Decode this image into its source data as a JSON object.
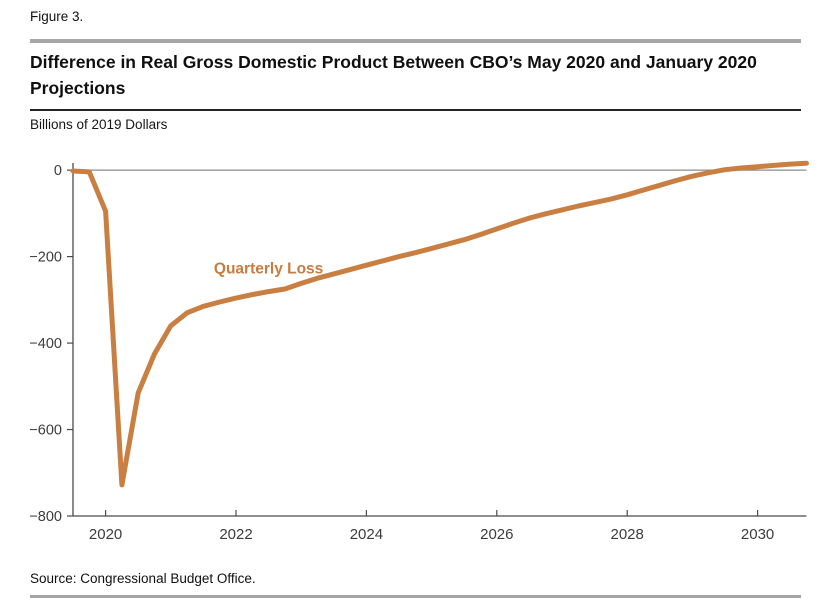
{
  "figure_label": "Figure 3.",
  "title": "Difference in Real Gross Domestic Product Between CBO’s May 2020 and January 2020 Projections",
  "units_label": "Billions of 2019 Dollars",
  "source": "Source: Congressional Budget Office.",
  "colors": {
    "line": "#C97F42",
    "annotation": "#C87C3F",
    "zero_line": "#8C8C8C",
    "axis": "#4A4A4A",
    "tick_text": "#3C3C3C",
    "rule_gray": "#A6A6A6",
    "rule_dark": "#242424"
  },
  "chart_data": {
    "type": "line",
    "title": "Difference in Real Gross Domestic Product Between CBO’s May 2020 and January 2020 Projections",
    "xlabel": "",
    "ylabel": "Billions of 2019 Dollars",
    "xlim": [
      2019.5,
      2030.75
    ],
    "ylim": [
      -800,
      35
    ],
    "grid": false,
    "legend": "none",
    "zero_reference_line": true,
    "x_ticks": [
      {
        "v": 2020,
        "label": "2020"
      },
      {
        "v": 2022,
        "label": "2022"
      },
      {
        "v": 2024,
        "label": "2024"
      },
      {
        "v": 2026,
        "label": "2026"
      },
      {
        "v": 2028,
        "label": "2028"
      },
      {
        "v": 2030,
        "label": "2030"
      }
    ],
    "y_ticks": [
      {
        "v": 0,
        "label": "0"
      },
      {
        "v": -200,
        "label": "−200"
      },
      {
        "v": -400,
        "label": "−400"
      },
      {
        "v": -600,
        "label": "−600"
      },
      {
        "v": -800,
        "label": "−800"
      }
    ],
    "annotation": {
      "text": "Quarterly Loss",
      "x": 2022.5,
      "y": -228
    },
    "series": [
      {
        "name": "Quarterly Loss",
        "x": [
          2019.5,
          2019.75,
          2020.0,
          2020.25,
          2020.5,
          2020.75,
          2021.0,
          2021.25,
          2021.5,
          2021.75,
          2022.0,
          2022.25,
          2022.5,
          2022.75,
          2023.0,
          2023.25,
          2023.5,
          2023.75,
          2024.0,
          2024.25,
          2024.5,
          2024.75,
          2025.0,
          2025.25,
          2025.5,
          2025.75,
          2026.0,
          2026.25,
          2026.5,
          2026.75,
          2027.0,
          2027.25,
          2027.5,
          2027.75,
          2028.0,
          2028.25,
          2028.5,
          2028.75,
          2029.0,
          2029.25,
          2029.5,
          2029.75,
          2030.0,
          2030.25,
          2030.5,
          2030.75
        ],
        "values": [
          -2,
          -4,
          -95,
          -728,
          -515,
          -425,
          -360,
          -330,
          -315,
          -305,
          -296,
          -288,
          -281,
          -275,
          -262,
          -250,
          -240,
          -230,
          -220,
          -210,
          -200,
          -191,
          -181,
          -171,
          -161,
          -149,
          -136,
          -123,
          -111,
          -101,
          -92,
          -83,
          -75,
          -67,
          -57,
          -46,
          -35,
          -24,
          -14,
          -6,
          1,
          5,
          8,
          11,
          14,
          16
        ]
      }
    ]
  }
}
